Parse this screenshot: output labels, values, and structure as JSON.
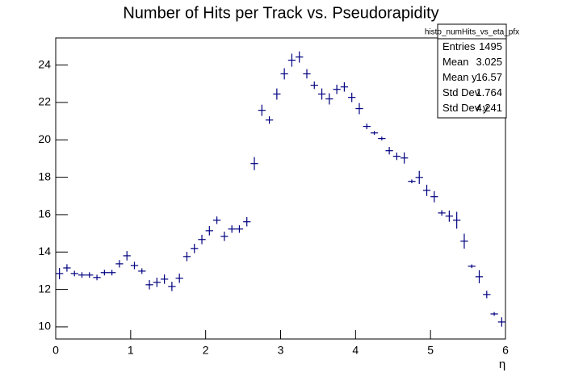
{
  "chart_data": {
    "type": "profile",
    "title": "Number of Hits per Track vs.  Pseudorapidity",
    "xlabel": "η",
    "color": "#000080",
    "xlim": [
      0,
      6
    ],
    "xticks": [
      0,
      1,
      2,
      3,
      4,
      5,
      6
    ],
    "ylim": [
      9.35,
      25.45
    ],
    "yticks": [
      10,
      12,
      14,
      16,
      18,
      20,
      22,
      24
    ],
    "x": [
      0.05,
      0.15,
      0.25,
      0.35,
      0.45,
      0.55,
      0.65,
      0.75,
      0.85,
      0.95,
      1.05,
      1.15,
      1.25,
      1.35,
      1.45,
      1.55,
      1.65,
      1.75,
      1.85,
      1.95,
      2.05,
      2.15,
      2.25,
      2.35,
      2.45,
      2.55,
      2.65,
      2.75,
      2.85,
      2.95,
      3.05,
      3.15,
      3.25,
      3.35,
      3.45,
      3.55,
      3.65,
      3.75,
      3.85,
      3.95,
      4.05,
      4.15,
      4.25,
      4.35,
      4.45,
      4.55,
      4.65,
      4.75,
      4.85,
      4.95,
      5.05,
      5.15,
      5.25,
      5.35,
      5.45,
      5.55,
      5.65,
      5.75,
      5.85,
      5.95
    ],
    "values": [
      12.85,
      13.15,
      12.85,
      12.77,
      12.77,
      12.64,
      12.9,
      12.9,
      13.37,
      13.8,
      13.28,
      12.98,
      12.25,
      12.38,
      12.55,
      12.16,
      12.6,
      13.76,
      14.19,
      14.67,
      15.14,
      15.7,
      14.84,
      15.23,
      15.23,
      15.62,
      18.73,
      21.58,
      21.06,
      22.45,
      23.53,
      24.26,
      24.43,
      23.53,
      22.92,
      22.45,
      22.19,
      22.7,
      22.83,
      22.27,
      21.67,
      20.72,
      20.37,
      20.07,
      19.42,
      19.12,
      19.03,
      17.78,
      17.99,
      17.3,
      16.96,
      16.09,
      15.92,
      15.7,
      14.58,
      13.24,
      12.68,
      11.73,
      10.69,
      10.26
    ],
    "errors": [
      0.3,
      0.2,
      0.15,
      0.15,
      0.15,
      0.15,
      0.15,
      0.15,
      0.2,
      0.25,
      0.2,
      0.15,
      0.25,
      0.25,
      0.25,
      0.25,
      0.25,
      0.25,
      0.25,
      0.25,
      0.25,
      0.2,
      0.25,
      0.2,
      0.2,
      0.25,
      0.35,
      0.3,
      0.2,
      0.3,
      0.3,
      0.35,
      0.3,
      0.25,
      0.2,
      0.3,
      0.3,
      0.25,
      0.25,
      0.25,
      0.3,
      0.15,
      0.1,
      0.1,
      0.2,
      0.2,
      0.3,
      0.1,
      0.35,
      0.3,
      0.3,
      0.15,
      0.3,
      0.45,
      0.4,
      0.1,
      0.35,
      0.2,
      0.1,
      0.25
    ],
    "stats": {
      "title": "histo_numHits_vs_eta_pfx",
      "rows": [
        [
          "Entries",
          "1495"
        ],
        [
          "Mean",
          "3.025"
        ],
        [
          "Mean y",
          "16.57"
        ],
        [
          "Std Dev",
          "1.764"
        ],
        [
          "Std Dev y",
          "4.241"
        ]
      ]
    }
  }
}
